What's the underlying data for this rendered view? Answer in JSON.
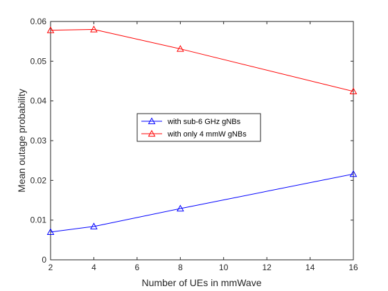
{
  "chart_data": {
    "type": "line",
    "title": "",
    "xlabel": "Number of UEs in mmWave",
    "ylabel": "Mean outage probability",
    "xlim": [
      2,
      16
    ],
    "ylim": [
      0,
      0.06
    ],
    "xticks": [
      2,
      4,
      6,
      8,
      10,
      12,
      14,
      16
    ],
    "yticks": [
      0,
      0.01,
      0.02,
      0.03,
      0.04,
      0.05,
      0.06
    ],
    "xtick_labels": [
      "2",
      "4",
      "6",
      "8",
      "10",
      "12",
      "14",
      "16"
    ],
    "ytick_labels": [
      "0",
      "0.01",
      "0.02",
      "0.03",
      "0.04",
      "0.05",
      "0.06"
    ],
    "grid": false,
    "legend_position": "center",
    "x": [
      2,
      4,
      8,
      16
    ],
    "series": [
      {
        "name": "with sub-6 GHz gNBs",
        "color": "#0000ff",
        "marker": "triangle",
        "values": [
          0.007,
          0.0084,
          0.0129,
          0.0216
        ]
      },
      {
        "name": "with only 4 mmW gNBs",
        "color": "#ff0000",
        "marker": "triangle",
        "values": [
          0.0578,
          0.058,
          0.0531,
          0.0424
        ]
      }
    ]
  }
}
